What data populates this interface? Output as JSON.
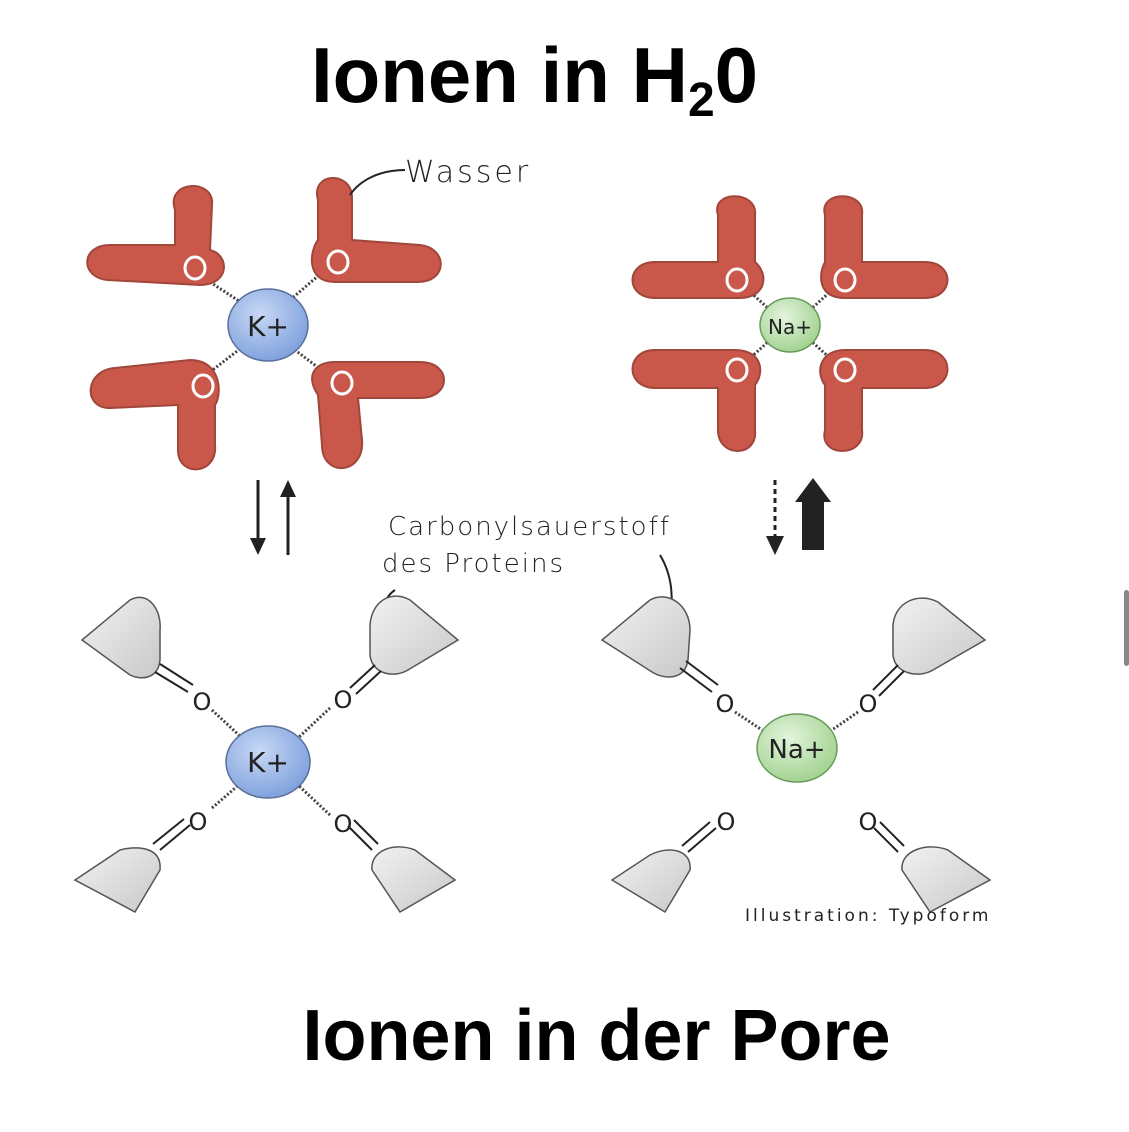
{
  "title_top": {
    "main": "Ionen in H",
    "sub": "2",
    "tail": "0"
  },
  "title_bottom": "Ionen in der Pore",
  "labels": {
    "water": "Wasser",
    "carbonyl_line1": "Carbonylsauerstoff",
    "carbonyl_line2": "des Proteins",
    "credit": "Illustration: Typoform"
  },
  "ions": {
    "potassium": "K+",
    "sodium": "Na+"
  },
  "oxygen": "O",
  "colors": {
    "water": "#c9584a",
    "water_dark": "#a84a3e",
    "potassium": "#8fb0e6",
    "sodium": "#b6dfa8",
    "carbonyl": "#d9d9d9"
  }
}
